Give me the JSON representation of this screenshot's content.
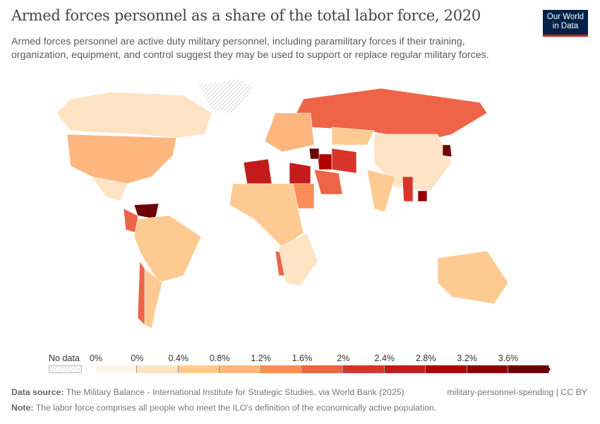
{
  "header": {
    "title": "Armed forces personnel as a share of the total labor force, 2020",
    "subtitle": "Armed forces personnel are active duty military personnel, including paramilitary forces if their training, organization, equipment, and control suggest they may be used to support or replace regular military forces.",
    "logo_text": "Our World in Data"
  },
  "legend": {
    "no_data_label": "No data",
    "labels": [
      "0%",
      "0%",
      "0.4%",
      "0.8%",
      "1.2%",
      "1.6%",
      "2%",
      "2.4%",
      "2.8%",
      "3.2%",
      "3.6%"
    ],
    "colors": [
      "#fef4e9",
      "#fee3c4",
      "#fdcb92",
      "#fcb67e",
      "#fb8d5a",
      "#ed6448",
      "#d9342a",
      "#c31c1b",
      "#b00202",
      "#900204",
      "#6d0003"
    ],
    "no_data_pattern": "hatched-gray"
  },
  "map": {
    "regions": [
      {
        "name": "Greenland",
        "bin": -1
      },
      {
        "name": "Canada",
        "bin": 1
      },
      {
        "name": "United States",
        "bin": 3
      },
      {
        "name": "Mexico",
        "bin": 1
      },
      {
        "name": "Venezuela",
        "bin": 10
      },
      {
        "name": "Colombia",
        "bin": 5
      },
      {
        "name": "Brazil",
        "bin": 2
      },
      {
        "name": "Argentina",
        "bin": 2
      },
      {
        "name": "Chile",
        "bin": 5
      },
      {
        "name": "Russia",
        "bin": 5
      },
      {
        "name": "China",
        "bin": 1
      },
      {
        "name": "India",
        "bin": 2
      },
      {
        "name": "Australia",
        "bin": 2
      },
      {
        "name": "Algeria",
        "bin": 7
      },
      {
        "name": "Egypt",
        "bin": 7
      },
      {
        "name": "Iran",
        "bin": 6
      },
      {
        "name": "Iraq",
        "bin": 8
      },
      {
        "name": "Syria",
        "bin": 10
      },
      {
        "name": "Saudi Arabia",
        "bin": 5
      },
      {
        "name": "Sudan",
        "bin": 4
      },
      {
        "name": "Namibia",
        "bin": 5
      },
      {
        "name": "Myanmar",
        "bin": 6
      },
      {
        "name": "Cambodia",
        "bin": 9
      },
      {
        "name": "North Korea",
        "bin": 10
      },
      {
        "name": "Kazakhstan",
        "bin": 2
      },
      {
        "name": "Europe",
        "bin": 3
      },
      {
        "name": "Central Africa",
        "bin": 2
      },
      {
        "name": "Southern Africa",
        "bin": 1
      }
    ]
  },
  "footer": {
    "source_label": "Data source:",
    "source_text": " The Military Balance - International Institute for Strategic Studies, via World Bank (2025)",
    "slug": "military-personnel-spending | CC BY",
    "note_label": "Note:",
    "note_text": " The labor force comprises all people who meet the ILO's definition of the economically active population."
  }
}
